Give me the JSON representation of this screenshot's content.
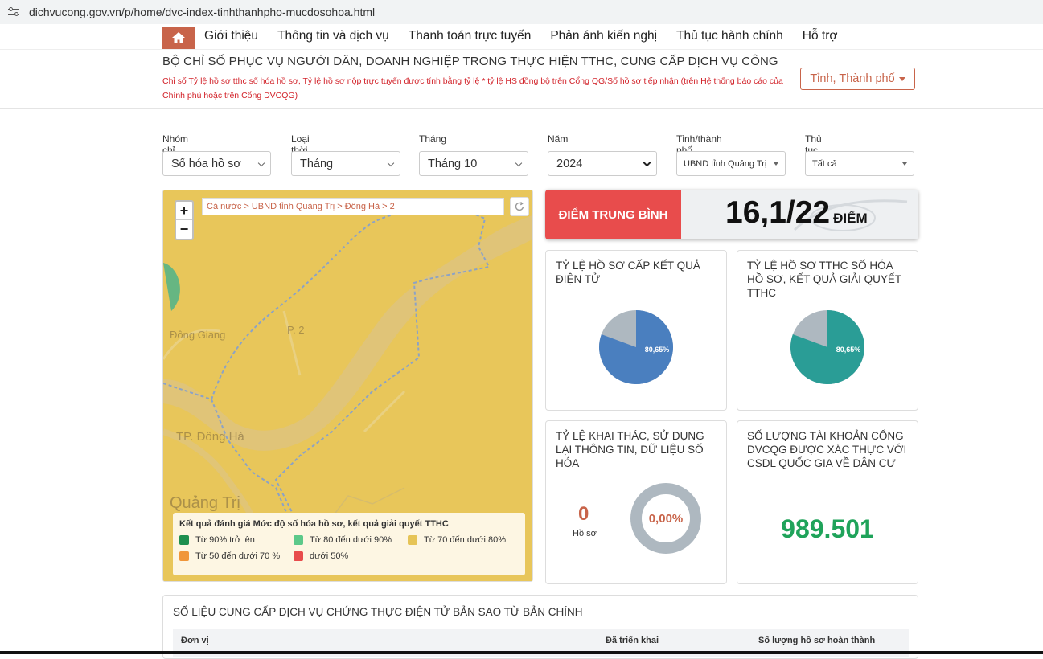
{
  "browser": {
    "url": "dichvucong.gov.vn/p/home/dvc-index-tinhthanhpho-mucdosohoa.html"
  },
  "nav": {
    "items": [
      "Giới thiệu",
      "Thông tin và dịch vụ",
      "Thanh toán trực tuyến",
      "Phản ánh kiến nghị",
      "Thủ tục hành chính",
      "Hỗ trợ"
    ]
  },
  "header": {
    "title": "BỘ CHỈ SỐ PHỤC VỤ NGƯỜI DÂN, DOANH NGHIỆP TRONG THỰC HIỆN TTHC, CUNG CẤP DỊCH VỤ CÔNG",
    "note": "Chỉ số Tỷ lệ hồ sơ tthc số hóa hồ sơ, Tỷ lệ hồ sơ nộp trực tuyến được tính bằng tỷ lệ * tỷ lệ HS đồng bộ trên Cổng QG/Số hồ sơ tiếp nhận (trên Hệ thống báo cáo của Chính phủ hoặc trên Cổng DVCQG)",
    "province_button": "Tỉnh, Thành phố"
  },
  "filters": [
    {
      "label": "Nhóm chỉ tiêu",
      "value": "Số hóa hồ sơ"
    },
    {
      "label": "Loại thời gian",
      "value": "Tháng"
    },
    {
      "label": "Tháng",
      "value": "Tháng 10"
    },
    {
      "label": "Năm",
      "value": "2024"
    },
    {
      "label": "Tỉnh/thành phố",
      "value": "UBND tỉnh Quảng Trị"
    },
    {
      "label": "Thủ tục",
      "value": "Tất cả"
    }
  ],
  "map": {
    "zoom_in": "+",
    "zoom_out": "−",
    "breadcrumb": "Cả nước > UBND tỉnh Quảng Trị > Đông Hà > 2",
    "labels": {
      "dong_giang": "Đông Giang",
      "p2": "P. 2",
      "tp_dong_ha": "TP. Đông Hà",
      "quang_tri": "Quảng Trị"
    },
    "legend": {
      "title": "Kết quả đánh giá Mức độ số hóa hồ sơ, kết quả giải quyết TTHC",
      "items": [
        {
          "label": "Từ 90% trở lên",
          "color": "#1e8f4e"
        },
        {
          "label": "Từ 80 đến dưới 90%",
          "color": "#5cc98a"
        },
        {
          "label": "Từ 70 đến dưới 80%",
          "color": "#e6c457"
        },
        {
          "label": "Từ 50 đến dưới 70 %",
          "color": "#f0963a"
        },
        {
          "label": "dưới 50%",
          "color": "#e84c4c"
        }
      ]
    }
  },
  "score": {
    "label": "ĐIỂM TRUNG BÌNH",
    "value": "16,1/22",
    "unit": "ĐIỂM"
  },
  "cards": {
    "c1": {
      "title": "TỶ LỆ HỒ SƠ CẤP KẾT QUẢ ĐIỆN TỬ",
      "pct_label": "80,65%",
      "pct": 80.65,
      "color": "#4a7fbf"
    },
    "c2": {
      "title": "TỶ LỆ HỒ SƠ TTHC SỐ HÓA HỒ SƠ, KẾT QUẢ GIẢI QUYẾT TTHC",
      "pct_label": "80,65%",
      "pct": 80.65,
      "color": "#2a9d96"
    },
    "c3": {
      "title": "TỶ LỆ KHAI THÁC, SỬ DỤNG LẠI THÔNG TIN, DỮ LIỆU SỐ HÓA",
      "count": "0",
      "count_label": "Hồ sơ",
      "ring_label": "0,00%"
    },
    "c4": {
      "title": "SỐ LƯỢNG TÀI KHOẢN CỔNG DVCQG ĐƯỢC XÁC THỰC VỚI CSDL QUỐC GIA VỀ DÂN CƯ",
      "value": "989.501"
    }
  },
  "bottom": {
    "title": "SỐ LIỆU CUNG CẤP DỊCH VỤ CHỨNG THỰC ĐIỆN TỬ BẢN SAO TỪ BẢN CHÍNH",
    "columns": [
      "Đơn vị",
      "Đã triển khai",
      "Số lượng hồ sơ hoàn thành"
    ]
  }
}
